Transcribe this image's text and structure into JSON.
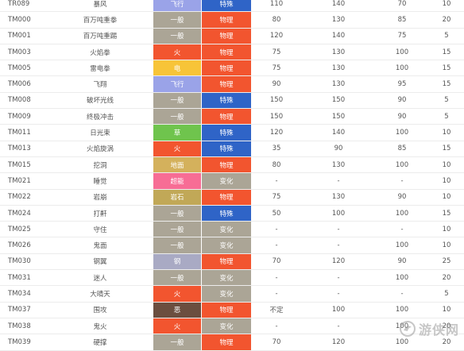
{
  "colors": {
    "types": {
      "飞行": "#9aa3e8",
      "一般": "#aba596",
      "火": "#f2552f",
      "电": "#f7c438",
      "草": "#6fc44d",
      "地面": "#d4b15c",
      "超能": "#f76d95",
      "岩石": "#c1a857",
      "钢": "#a9aac4",
      "恶": "#6b4e3f"
    },
    "categories": {
      "物理": "#f2552f",
      "特殊": "#2f64c7",
      "变化": "#aba596"
    }
  },
  "rows": [
    {
      "tm": "TR089",
      "name": "暴风",
      "type": "飞行",
      "category": "特殊",
      "power": "110",
      "accuracy": "140",
      "pp": "70",
      "last": "10"
    },
    {
      "tm": "TM000",
      "name": "百万吨重拳",
      "type": "一般",
      "category": "物理",
      "power": "80",
      "accuracy": "130",
      "pp": "85",
      "last": "20"
    },
    {
      "tm": "TM001",
      "name": "百万吨重踢",
      "type": "一般",
      "category": "物理",
      "power": "120",
      "accuracy": "140",
      "pp": "75",
      "last": "5"
    },
    {
      "tm": "TM003",
      "name": "火焰拳",
      "type": "火",
      "category": "物理",
      "power": "75",
      "accuracy": "130",
      "pp": "100",
      "last": "15"
    },
    {
      "tm": "TM005",
      "name": "雷电拳",
      "type": "电",
      "category": "物理",
      "power": "75",
      "accuracy": "130",
      "pp": "100",
      "last": "15"
    },
    {
      "tm": "TM006",
      "name": "飞翔",
      "type": "飞行",
      "category": "物理",
      "power": "90",
      "accuracy": "130",
      "pp": "95",
      "last": "15"
    },
    {
      "tm": "TM008",
      "name": "破坏光线",
      "type": "一般",
      "category": "特殊",
      "power": "150",
      "accuracy": "150",
      "pp": "90",
      "last": "5"
    },
    {
      "tm": "TM009",
      "name": "终极冲击",
      "type": "一般",
      "category": "物理",
      "power": "150",
      "accuracy": "150",
      "pp": "90",
      "last": "5"
    },
    {
      "tm": "TM011",
      "name": "日光束",
      "type": "草",
      "category": "特殊",
      "power": "120",
      "accuracy": "140",
      "pp": "100",
      "last": "10"
    },
    {
      "tm": "TM013",
      "name": "火焰旋涡",
      "type": "火",
      "category": "特殊",
      "power": "35",
      "accuracy": "90",
      "pp": "85",
      "last": "15"
    },
    {
      "tm": "TM015",
      "name": "挖洞",
      "type": "地面",
      "category": "物理",
      "power": "80",
      "accuracy": "130",
      "pp": "100",
      "last": "10"
    },
    {
      "tm": "TM021",
      "name": "睡觉",
      "type": "超能",
      "category": "变化",
      "power": "-",
      "accuracy": "-",
      "pp": "-",
      "last": "10"
    },
    {
      "tm": "TM022",
      "name": "岩崩",
      "type": "岩石",
      "category": "物理",
      "power": "75",
      "accuracy": "130",
      "pp": "90",
      "last": "10"
    },
    {
      "tm": "TM024",
      "name": "打鼾",
      "type": "一般",
      "category": "特殊",
      "power": "50",
      "accuracy": "100",
      "pp": "100",
      "last": "15"
    },
    {
      "tm": "TM025",
      "name": "守住",
      "type": "一般",
      "category": "变化",
      "power": "-",
      "accuracy": "-",
      "pp": "-",
      "last": "10"
    },
    {
      "tm": "TM026",
      "name": "鬼面",
      "type": "一般",
      "category": "变化",
      "power": "-",
      "accuracy": "-",
      "pp": "100",
      "last": "10"
    },
    {
      "tm": "TM030",
      "name": "钢翼",
      "type": "钢",
      "category": "物理",
      "power": "70",
      "accuracy": "120",
      "pp": "90",
      "last": "25"
    },
    {
      "tm": "TM031",
      "name": "迷人",
      "type": "一般",
      "category": "变化",
      "power": "-",
      "accuracy": "-",
      "pp": "100",
      "last": "20"
    },
    {
      "tm": "TM034",
      "name": "大晴天",
      "type": "火",
      "category": "变化",
      "power": "-",
      "accuracy": "-",
      "pp": "-",
      "last": "5"
    },
    {
      "tm": "TM037",
      "name": "围攻",
      "type": "恶",
      "category": "物理",
      "power": "不定",
      "accuracy": "100",
      "pp": "100",
      "last": "10"
    },
    {
      "tm": "TM038",
      "name": "鬼火",
      "type": "火",
      "category": "变化",
      "power": "-",
      "accuracy": "-",
      "pp": "100",
      "last": "20"
    },
    {
      "tm": "TM039",
      "name": "硬撑",
      "type": "一般",
      "category": "物理",
      "power": "70",
      "accuracy": "120",
      "pp": "100",
      "last": "20"
    }
  ],
  "watermark": {
    "text": "游侠网",
    "icon": "gamersky-logo-icon"
  }
}
